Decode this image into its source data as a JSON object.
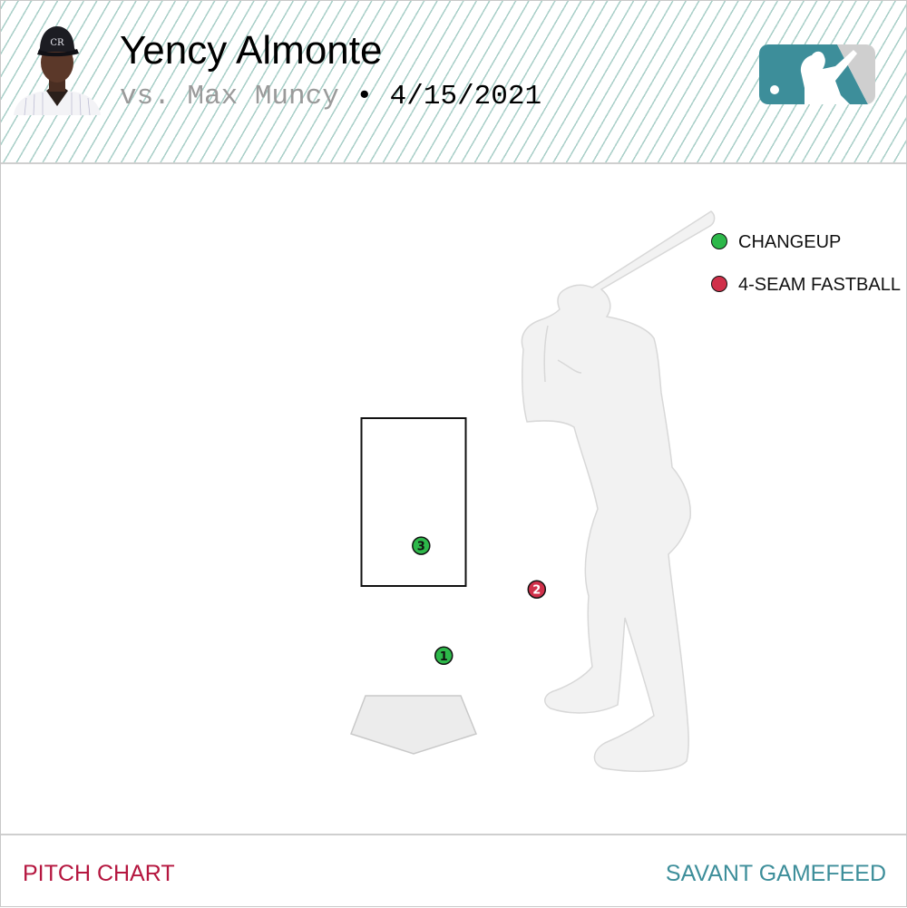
{
  "header": {
    "pitcher_name": "Yency Almonte",
    "vs_text": "vs. Max Muncy",
    "separator": "•",
    "date": "4/15/2021"
  },
  "colors": {
    "changeup": "#2db84a",
    "four_seam_fastball": "#d0304a",
    "footer_left": "#b5163f",
    "footer_right": "#3d8e9a",
    "logo_teal": "#3d8e9a",
    "logo_gray": "#cfcfcf"
  },
  "icons": {
    "avatar": "player-headshot-icon",
    "logo": "mlb-logo-icon",
    "batter": "batter-silhouette-icon",
    "plate": "home-plate-icon"
  },
  "chart_data": {
    "type": "scatter",
    "legend": [
      {
        "label": "CHANGEUP",
        "color": "#2db84a"
      },
      {
        "label": "4-SEAM FASTBALL",
        "color": "#d0304a"
      }
    ],
    "strike_zone": {
      "x": [
        -0.83,
        0.83
      ],
      "z": [
        1.5,
        3.5
      ]
    },
    "pitches": [
      {
        "number": "1",
        "type": "CHANGEUP",
        "x": 0.48,
        "z": 0.67
      },
      {
        "number": "2",
        "type": "4-SEAM FASTBALL",
        "x": 1.96,
        "z": 1.46
      },
      {
        "number": "3",
        "type": "CHANGEUP",
        "x": 0.12,
        "z": 1.98
      }
    ],
    "legend_position": "top-right"
  },
  "footer": {
    "left": "PITCH CHART",
    "right": "SAVANT GAMEFEED"
  }
}
